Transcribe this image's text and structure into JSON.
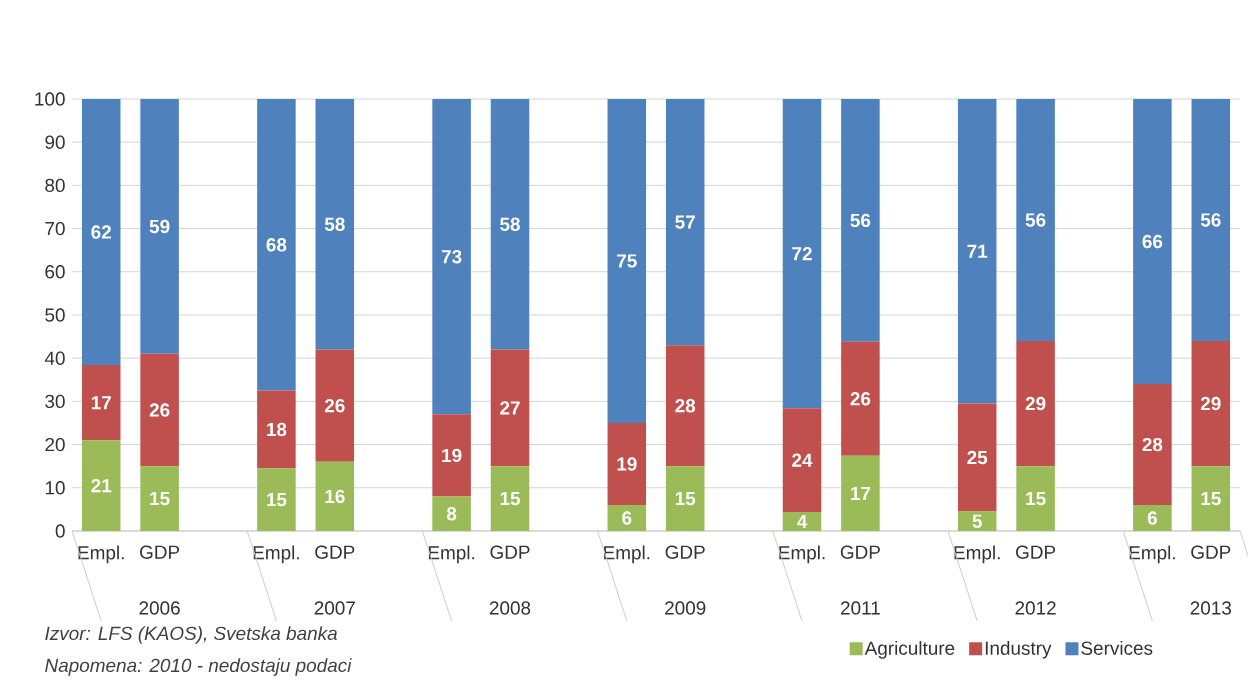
{
  "chart_data": {
    "type": "bar",
    "stacked": true,
    "categories": [
      "Empl.",
      "GDP",
      null,
      "Empl.",
      "GDP",
      null,
      "Empl.",
      "GDP",
      null,
      "Empl.",
      "GDP",
      null,
      "Empl.",
      "GDP",
      null,
      "Empl.",
      "GDP",
      null,
      "Empl.",
      "GDP"
    ],
    "series": [
      {
        "name": "Agriculture",
        "color": "#9bbb59",
        "values": [
          21,
          15,
          null,
          14.5,
          16,
          null,
          8,
          15,
          null,
          6,
          15,
          null,
          4.4,
          17.4,
          null,
          4.5,
          15,
          null,
          6,
          15
        ],
        "value_labels": [
          "21",
          "15",
          null,
          "15",
          "16",
          null,
          "8",
          "15",
          null,
          "6",
          "15",
          null,
          "4",
          "17",
          null,
          "5",
          "15",
          null,
          "6",
          "15"
        ]
      },
      {
        "name": "Industry",
        "color": "#c0504d",
        "values": [
          17.4,
          26,
          null,
          18,
          26,
          null,
          19,
          27,
          null,
          19,
          28,
          null,
          24,
          26.4,
          null,
          25,
          29,
          null,
          28,
          29
        ],
        "value_labels": [
          "17",
          "26",
          null,
          "18",
          "26",
          null,
          "19",
          "27",
          null,
          "19",
          "28",
          null,
          "24",
          "26",
          null,
          "25",
          "29",
          null,
          "28",
          "29"
        ]
      },
      {
        "name": "Services",
        "color": "#4f81bd",
        "values": [
          61.6,
          59,
          null,
          67.5,
          58,
          null,
          73,
          58,
          null,
          75,
          57,
          null,
          71.6,
          56.2,
          null,
          70.5,
          56,
          null,
          66,
          56
        ],
        "value_labels": [
          "62",
          "59",
          null,
          "68",
          "58",
          null,
          "73",
          "58",
          null,
          "75",
          "57",
          null,
          "72",
          "56",
          null,
          "71",
          "56",
          null,
          "66",
          "56"
        ]
      }
    ],
    "ylim": [
      0,
      100
    ],
    "yticks": [
      0,
      10,
      20,
      30,
      40,
      50,
      60,
      70,
      80,
      90,
      100
    ],
    "grid": "y",
    "legend": "bottom right",
    "annotations": [
      "2006",
      "2007",
      "2008",
      "2009",
      "2011",
      "2012",
      "2013",
      "*Izvor: LFS (KAOS), Svetska banka*",
      "*Napomena: 2010 - nedostaju podaci*"
    ]
  }
}
